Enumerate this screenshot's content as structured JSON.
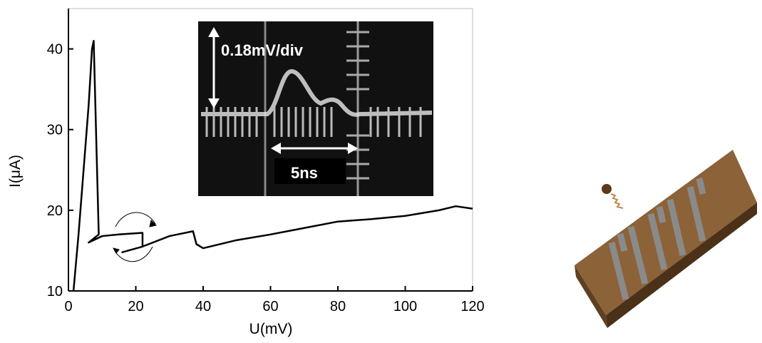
{
  "chart_data": {
    "type": "line",
    "xlabel": "U(mV)",
    "ylabel": "I(μA)",
    "annotations": [
      "0.18mV/div",
      "5ns"
    ],
    "x": [
      1.5,
      3,
      4.5,
      6,
      7,
      7.5,
      9,
      6,
      10,
      15,
      22,
      22,
      16,
      22,
      30,
      37,
      38,
      40,
      50,
      60,
      70,
      80,
      90,
      100,
      110,
      115,
      120
    ],
    "series": [
      {
        "color": "#000000",
        "values": [
          10,
          17,
          25,
          33,
          40,
          41,
          17,
          16,
          16.8,
          17,
          17.2,
          15.5,
          14.8,
          15.5,
          16.8,
          17.4,
          15.8,
          15.3,
          16.3,
          17,
          17.8,
          18.6,
          18.9,
          19.3,
          20,
          20.5,
          20.2
        ]
      }
    ],
    "xlim": [
      0,
      120
    ],
    "xticks": [
      0,
      20,
      40,
      60,
      80,
      100,
      120
    ],
    "ylim": [
      10,
      45
    ],
    "yticks": [
      10,
      20,
      30,
      40
    ],
    "grid": false
  }
}
